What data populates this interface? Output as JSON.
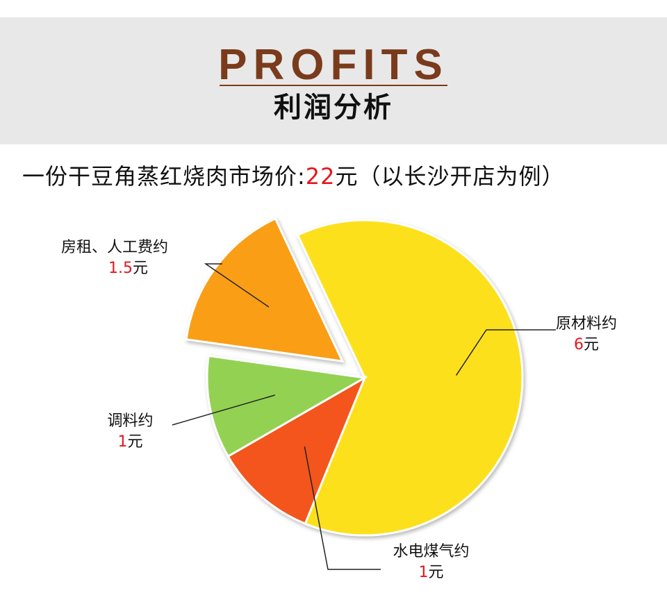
{
  "banner": {
    "title_en": "PROFITS",
    "title_cn": "利润分析"
  },
  "headline": {
    "prefix": "一份干豆角蒸红烧肉市场价:",
    "price": "22",
    "unit": "元",
    "suffix": "（以长沙开店为例）"
  },
  "colors": {
    "banner_bg": "#e8e8e8",
    "brand_brown": "#7a3b1c",
    "accent_red": "#e8141c"
  },
  "chart_data": {
    "type": "pie",
    "unit": "元",
    "slices": [
      {
        "label": "原材料约",
        "value": 6,
        "value_text": "6",
        "unit": "元",
        "color": "#fce01e"
      },
      {
        "label": "水电煤气约",
        "value": 1,
        "value_text": "1",
        "unit": "元",
        "color": "#f3541a"
      },
      {
        "label": "调料约",
        "value": 1,
        "value_text": "1",
        "unit": "元",
        "color": "#93d152"
      },
      {
        "label": "房租、人工费约",
        "value": 1.5,
        "value_text": "1.5",
        "unit": "元",
        "color": "#fa9e16",
        "exploded": true
      }
    ]
  }
}
